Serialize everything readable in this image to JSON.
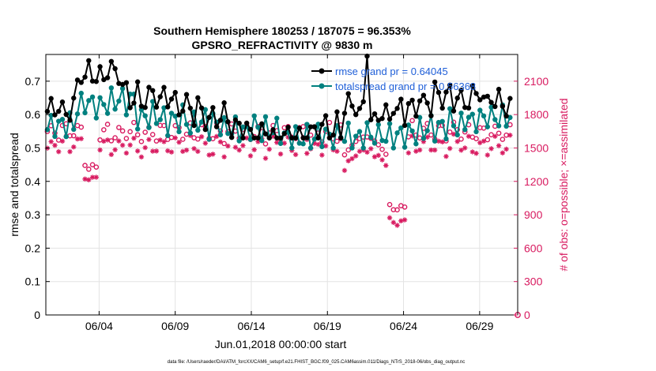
{
  "chart_data": {
    "type": "line",
    "title_line1": "Southern Hemisphere 180253 / 187075 = 96.353%",
    "title_line2": "GPSRO_REFRACTIVITY @ 9830 m",
    "xlabel": "Jun.01,2018 00:00:00 start",
    "ylabel_left": "rmse and totalspread",
    "ylabel_right": "# of obs: o=possible; ×=assimilated",
    "xlim": [
      0,
      31
    ],
    "ylim_left": [
      0,
      0.78
    ],
    "ylim_right": [
      0,
      2340
    ],
    "x_ticks": [
      {
        "x": 3.5,
        "label": "06/04"
      },
      {
        "x": 8.5,
        "label": "06/09"
      },
      {
        "x": 13.5,
        "label": "06/14"
      },
      {
        "x": 18.5,
        "label": "06/19"
      },
      {
        "x": 23.5,
        "label": "06/24"
      },
      {
        "x": 28.5,
        "label": "06/29"
      }
    ],
    "y_ticks_left": [
      "0",
      "0.1",
      "0.2",
      "0.3",
      "0.4",
      "0.5",
      "0.6",
      "0.7"
    ],
    "y_ticks_left_values": [
      0,
      0.1,
      0.2,
      0.3,
      0.4,
      0.5,
      0.6,
      0.7
    ],
    "y_ticks_right": [
      "0",
      "300",
      "600",
      "900",
      "1200",
      "1500",
      "1800",
      "2100"
    ],
    "y_ticks_right_values": [
      0,
      300,
      600,
      900,
      1200,
      1500,
      1800,
      2100
    ],
    "legend": {
      "placement": "top-right",
      "entries": [
        "rmse grand pr = 0.64045",
        "totalspread grand pr = 0.56368"
      ]
    },
    "series": [
      {
        "name": "rmse",
        "color": "#000000"
      },
      {
        "name": "totalspread",
        "color": "#00807f"
      },
      {
        "name": "obs possible",
        "color": "#d81b60",
        "marker": "o"
      },
      {
        "name": "obs assimilated",
        "color": "#d81b60",
        "marker": "*"
      }
    ],
    "extra_point": {
      "x": 31,
      "y_right": 0
    },
    "footer": "data file: /Users/raeder/DAI/ATM_forcXX/CAM6_setup/f.e21.FHIST_BGC.f09_025.CAM6assim.011/Diags_NTrS_2018-06/obs_diag_output.nc"
  },
  "colors": {
    "rmse": "#000000",
    "spread": "#00807f",
    "obs": "#d81b60",
    "legend_text": "#1f5fd8"
  }
}
